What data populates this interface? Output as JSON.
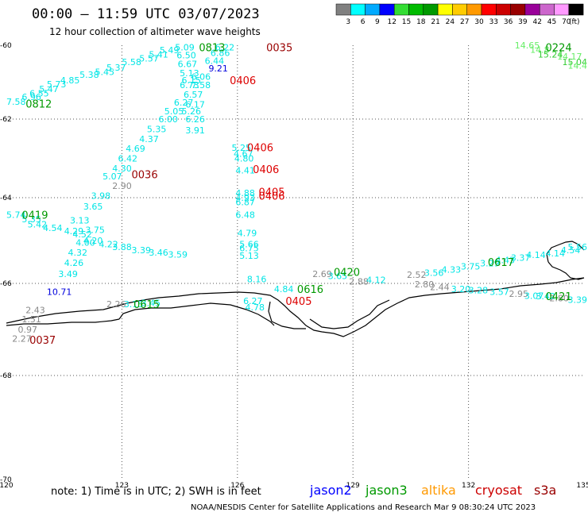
{
  "title": "00:00 – 11:59 UTC 03/07/2023",
  "subtitle": "12 hour collection of altimeter wave heights",
  "note": "note: 1) Time is in UTC; 2) SWH is in feet",
  "credit": "NOAA/NESDIS Center for Satellite Applications and Research    Mar  9 08:30:24 UTC 2023",
  "satellites": [
    {
      "name": "jason2",
      "color": "#0000ff"
    },
    {
      "name": "jason3",
      "color": "#009900"
    },
    {
      "name": "altika",
      "color": "#ff9900"
    },
    {
      "name": "cryosat",
      "color": "#cc0000"
    },
    {
      "name": "s3a",
      "color": "#990000"
    }
  ],
  "colorbar": {
    "unit": "(ft)",
    "labels": [
      "3",
      "6",
      "9",
      "12",
      "15",
      "18",
      "21",
      "24",
      "27",
      "30",
      "33",
      "36",
      "39",
      "42",
      "45",
      "70"
    ],
    "colors": [
      "#808080",
      "#00ffff",
      "#00aaff",
      "#0000ff",
      "#33dd33",
      "#00bb00",
      "#009900",
      "#ffff00",
      "#ffcc00",
      "#ff9900",
      "#ff0000",
      "#cc0000",
      "#990000",
      "#990099",
      "#cc66cc",
      "#ff99ff",
      "#000000"
    ]
  },
  "axes": {
    "lon_ticks": [
      "120",
      "123",
      "126",
      "129",
      "132",
      "135"
    ],
    "lat_ticks": [
      "-60",
      "-62",
      "-64",
      "-66",
      "-68",
      "-70"
    ]
  },
  "wave_labels": [
    {
      "t": "7.58",
      "lon": 120.0,
      "lat": -61.53,
      "c": "#00e5e5"
    },
    {
      "t": "6.96",
      "lon": 120.4,
      "lat": -61.4,
      "c": "#00e5e5"
    },
    {
      "t": "6.55",
      "lon": 120.6,
      "lat": -61.3,
      "c": "#00e5e5"
    },
    {
      "t": "5.47",
      "lon": 120.85,
      "lat": -61.18,
      "c": "#00e5e5"
    },
    {
      "t": "5.73",
      "lon": 121.05,
      "lat": -61.05,
      "c": "#00e5e5"
    },
    {
      "t": "4.85",
      "lon": 121.4,
      "lat": -60.95,
      "c": "#00e5e5"
    },
    {
      "t": "5.38",
      "lon": 121.9,
      "lat": -60.8,
      "c": "#00e5e5"
    },
    {
      "t": "5.45",
      "lon": 122.3,
      "lat": -60.72,
      "c": "#00e5e5"
    },
    {
      "t": "5.37",
      "lon": 122.6,
      "lat": -60.6,
      "c": "#00e5e5"
    },
    {
      "t": "5.58",
      "lon": 123.0,
      "lat": -60.45,
      "c": "#00e5e5"
    },
    {
      "t": "5.57",
      "lon": 123.45,
      "lat": -60.35,
      "c": "#00e5e5"
    },
    {
      "t": "5.41",
      "lon": 123.7,
      "lat": -60.25,
      "c": "#00e5e5"
    },
    {
      "t": "5.49",
      "lon": 123.98,
      "lat": -60.13,
      "c": "#00e5e5"
    },
    {
      "t": "5.09",
      "lon": 124.38,
      "lat": -60.05,
      "c": "#00e5e5"
    },
    {
      "t": "6.50",
      "lon": 124.42,
      "lat": -60.27,
      "c": "#00e5e5"
    },
    {
      "t": "6.22",
      "lon": 125.42,
      "lat": -60.05,
      "c": "#00e5e5"
    },
    {
      "t": "6.86",
      "lon": 125.3,
      "lat": -60.2,
      "c": "#00e5e5"
    },
    {
      "t": "6.44",
      "lon": 125.15,
      "lat": -60.42,
      "c": "#00e5e5"
    },
    {
      "t": "6.67",
      "lon": 124.45,
      "lat": -60.5,
      "c": "#00e5e5"
    },
    {
      "t": "9.21",
      "lon": 125.25,
      "lat": -60.62,
      "c": "#0000dd"
    },
    {
      "t": "5.13",
      "lon": 124.5,
      "lat": -60.75,
      "c": "#00e5e5"
    },
    {
      "t": "6.06",
      "lon": 124.8,
      "lat": -60.85,
      "c": "#00e5e5"
    },
    {
      "t": "6.15",
      "lon": 124.55,
      "lat": -60.95,
      "c": "#00e5e5"
    },
    {
      "t": "6.73",
      "lon": 124.5,
      "lat": -61.08,
      "c": "#00e5e5"
    },
    {
      "t": "7.58",
      "lon": 124.8,
      "lat": -61.08,
      "c": "#00e5e5"
    },
    {
      "t": "6.57",
      "lon": 124.6,
      "lat": -61.33,
      "c": "#00e5e5"
    },
    {
      "t": "6.27",
      "lon": 124.35,
      "lat": -61.55,
      "c": "#00e5e5"
    },
    {
      "t": "6.17",
      "lon": 124.65,
      "lat": -61.6,
      "c": "#00e5e5"
    },
    {
      "t": "5.05",
      "lon": 124.1,
      "lat": -61.78,
      "c": "#00e5e5"
    },
    {
      "t": "5.26",
      "lon": 124.55,
      "lat": -61.78,
      "c": "#00e5e5"
    },
    {
      "t": "6.00",
      "lon": 123.95,
      "lat": -62.0,
      "c": "#00e5e5"
    },
    {
      "t": "6.26",
      "lon": 124.65,
      "lat": -62.0,
      "c": "#00e5e5"
    },
    {
      "t": "5.35",
      "lon": 123.65,
      "lat": -62.25,
      "c": "#00e5e5"
    },
    {
      "t": "3.91",
      "lon": 124.65,
      "lat": -62.28,
      "c": "#00e5e5"
    },
    {
      "t": "4.37",
      "lon": 123.45,
      "lat": -62.5,
      "c": "#00e5e5"
    },
    {
      "t": "4.69",
      "lon": 123.1,
      "lat": -62.75,
      "c": "#00e5e5"
    },
    {
      "t": "5.25",
      "lon": 125.85,
      "lat": -62.73,
      "c": "#00e5e5"
    },
    {
      "t": "4.67",
      "lon": 125.9,
      "lat": -62.88,
      "c": "#00e5e5"
    },
    {
      "t": "4.80",
      "lon": 125.92,
      "lat": -63.0,
      "c": "#00e5e5"
    },
    {
      "t": "6.42",
      "lon": 122.9,
      "lat": -63.0,
      "c": "#00e5e5"
    },
    {
      "t": "4.30",
      "lon": 122.75,
      "lat": -63.25,
      "c": "#00e5e5"
    },
    {
      "t": "4.41",
      "lon": 125.95,
      "lat": -63.3,
      "c": "#00e5e5"
    },
    {
      "t": "5.07",
      "lon": 122.5,
      "lat": -63.45,
      "c": "#00e5e5"
    },
    {
      "t": "2.90",
      "lon": 122.75,
      "lat": -63.7,
      "c": "#888888"
    },
    {
      "t": "3.98",
      "lon": 122.2,
      "lat": -63.95,
      "c": "#00e5e5"
    },
    {
      "t": "4.88",
      "lon": 125.95,
      "lat": -63.88,
      "c": "#00e5e5"
    },
    {
      "t": "4.93",
      "lon": 125.95,
      "lat": -64.0,
      "c": "#00e5e5"
    },
    {
      "t": "6.87",
      "lon": 125.95,
      "lat": -64.1,
      "c": "#00e5e5"
    },
    {
      "t": "3.65",
      "lon": 122.0,
      "lat": -64.2,
      "c": "#00e5e5"
    },
    {
      "t": "6.48",
      "lon": 125.95,
      "lat": -64.4,
      "c": "#00e5e5"
    },
    {
      "t": "5.74",
      "lon": 120.0,
      "lat": -64.4,
      "c": "#00e5e5"
    },
    {
      "t": "5.35",
      "lon": 120.4,
      "lat": -64.5,
      "c": "#00e5e5"
    },
    {
      "t": "5.42",
      "lon": 120.55,
      "lat": -64.62,
      "c": "#00e5e5"
    },
    {
      "t": "4.54",
      "lon": 120.95,
      "lat": -64.7,
      "c": "#00e5e5"
    },
    {
      "t": "3.13",
      "lon": 121.65,
      "lat": -64.53,
      "c": "#00e5e5"
    },
    {
      "t": "4.29",
      "lon": 121.5,
      "lat": -64.78,
      "c": "#00e5e5"
    },
    {
      "t": "3.75",
      "lon": 122.05,
      "lat": -64.75,
      "c": "#00e5e5"
    },
    {
      "t": "4.52",
      "lon": 121.72,
      "lat": -64.85,
      "c": "#00e5e5"
    },
    {
      "t": "4.79",
      "lon": 126.0,
      "lat": -64.82,
      "c": "#00e5e5"
    },
    {
      "t": "4.20",
      "lon": 122.0,
      "lat": -65.0,
      "c": "#00e5e5"
    },
    {
      "t": "4.00",
      "lon": 121.8,
      "lat": -65.05,
      "c": "#00e5e5"
    },
    {
      "t": "4.22",
      "lon": 122.4,
      "lat": -65.08,
      "c": "#00e5e5"
    },
    {
      "t": "5.66",
      "lon": 126.05,
      "lat": -65.08,
      "c": "#00e5e5"
    },
    {
      "t": "3.88",
      "lon": 122.75,
      "lat": -65.15,
      "c": "#00e5e5"
    },
    {
      "t": "6.75",
      "lon": 126.05,
      "lat": -65.18,
      "c": "#00e5e5"
    },
    {
      "t": "3.39",
      "lon": 123.25,
      "lat": -65.22,
      "c": "#00e5e5"
    },
    {
      "t": "4.32",
      "lon": 121.6,
      "lat": -65.28,
      "c": "#00e5e5"
    },
    {
      "t": "3.46",
      "lon": 123.7,
      "lat": -65.28,
      "c": "#00e5e5"
    },
    {
      "t": "3.59",
      "lon": 124.2,
      "lat": -65.32,
      "c": "#00e5e5"
    },
    {
      "t": "5.13",
      "lon": 126.05,
      "lat": -65.35,
      "c": "#00e5e5"
    },
    {
      "t": "4.26",
      "lon": 121.5,
      "lat": -65.52,
      "c": "#00e5e5"
    },
    {
      "t": "3.49",
      "lon": 121.35,
      "lat": -65.78,
      "c": "#00e5e5"
    },
    {
      "t": "8.16",
      "lon": 126.25,
      "lat": -65.9,
      "c": "#00e5e5"
    },
    {
      "t": "4.84",
      "lon": 126.95,
      "lat": -66.12,
      "c": "#00e5e5"
    },
    {
      "t": "10.71",
      "lon": 121.05,
      "lat": -66.18,
      "c": "#0000dd"
    },
    {
      "t": "6.27",
      "lon": 126.15,
      "lat": -66.38,
      "c": "#00e5e5"
    },
    {
      "t": "4.78",
      "lon": 126.2,
      "lat": -66.52,
      "c": "#00e5e5"
    },
    {
      "t": "2.26",
      "lon": 122.6,
      "lat": -66.45,
      "c": "#888888"
    },
    {
      "t": "3.15",
      "lon": 123.05,
      "lat": -66.45,
      "c": "#00e5e5"
    },
    {
      "t": "3.45",
      "lon": 123.5,
      "lat": -66.42,
      "c": "#00e5e5"
    },
    {
      "t": "2.43",
      "lon": 120.5,
      "lat": -66.58,
      "c": "#888888"
    },
    {
      "t": "1.51",
      "lon": 120.4,
      "lat": -66.78,
      "c": "#888888"
    },
    {
      "t": "0.97",
      "lon": 120.3,
      "lat": -67.0,
      "c": "#888888"
    },
    {
      "t": "2.27",
      "lon": 120.15,
      "lat": -67.2,
      "c": "#888888"
    },
    {
      "t": "2.69",
      "lon": 127.95,
      "lat": -65.78,
      "c": "#888888"
    },
    {
      "t": "3.65",
      "lon": 128.35,
      "lat": -65.82,
      "c": "#00e5e5"
    },
    {
      "t": "2.88",
      "lon": 128.9,
      "lat": -65.95,
      "c": "#888888"
    },
    {
      "t": "4.12",
      "lon": 129.35,
      "lat": -65.92,
      "c": "#00e5e5"
    },
    {
      "t": "2.52",
      "lon": 130.4,
      "lat": -65.8,
      "c": "#888888"
    },
    {
      "t": "3.56",
      "lon": 130.85,
      "lat": -65.75,
      "c": "#00e5e5"
    },
    {
      "t": "4.33",
      "lon": 131.3,
      "lat": -65.68,
      "c": "#00e5e5"
    },
    {
      "t": "3.75",
      "lon": 131.8,
      "lat": -65.6,
      "c": "#00e5e5"
    },
    {
      "t": "3.29",
      "lon": 132.3,
      "lat": -65.53,
      "c": "#00e5e5"
    },
    {
      "t": "4.43",
      "lon": 132.7,
      "lat": -65.45,
      "c": "#00e5e5"
    },
    {
      "t": "3.37",
      "lon": 133.1,
      "lat": -65.4,
      "c": "#00e5e5"
    },
    {
      "t": "4.14",
      "lon": 133.5,
      "lat": -65.33,
      "c": "#00e5e5"
    },
    {
      "t": "4.14",
      "lon": 134.0,
      "lat": -65.3,
      "c": "#00e5e5"
    },
    {
      "t": "4.54",
      "lon": 134.4,
      "lat": -65.22,
      "c": "#00e5e5"
    },
    {
      "t": "5.56",
      "lon": 134.75,
      "lat": -65.15,
      "c": "#00e5e5"
    },
    {
      "t": "2.80",
      "lon": 130.6,
      "lat": -66.02,
      "c": "#888888"
    },
    {
      "t": "2.44",
      "lon": 131.0,
      "lat": -66.08,
      "c": "#888888"
    },
    {
      "t": "3.20",
      "lon": 131.55,
      "lat": -66.12,
      "c": "#00e5e5"
    },
    {
      "t": "3.28",
      "lon": 132.0,
      "lat": -66.15,
      "c": "#00e5e5"
    },
    {
      "t": "3.57",
      "lon": 132.55,
      "lat": -66.18,
      "c": "#00e5e5"
    },
    {
      "t": "2.95",
      "lon": 133.05,
      "lat": -66.22,
      "c": "#888888"
    },
    {
      "t": "3.07",
      "lon": 133.45,
      "lat": -66.27,
      "c": "#00e5e5"
    },
    {
      "t": "3.42",
      "lon": 133.75,
      "lat": -66.28,
      "c": "#00e5e5"
    },
    {
      "t": "2.80",
      "lon": 134.1,
      "lat": -66.32,
      "c": "#888888"
    },
    {
      "t": "3.39",
      "lon": 134.75,
      "lat": -66.35,
      "c": "#00e5e5"
    },
    {
      "t": "14.65",
      "lon": 133.2,
      "lat": -60.0,
      "c": "#66ee66"
    },
    {
      "t": "14.8",
      "lon": 133.6,
      "lat": -60.12,
      "c": "#66ee66"
    },
    {
      "t": "15.24",
      "lon": 133.8,
      "lat": -60.25,
      "c": "#33cc33"
    },
    {
      "t": "14.17",
      "lon": 134.3,
      "lat": -60.3,
      "c": "#66ee66"
    },
    {
      "t": "15.04",
      "lon": 134.5,
      "lat": -60.45,
      "c": "#33cc33"
    },
    {
      "t": "14.4",
      "lon": 134.95,
      "lat": -60.55,
      "c": "#66ee66"
    }
  ],
  "pass_labels": [
    {
      "t": "0812",
      "lon": 120.5,
      "lat": -61.58,
      "c": "#009900"
    },
    {
      "t": "0813",
      "lon": 125.0,
      "lat": -60.05,
      "c": "#009900"
    },
    {
      "t": "0035",
      "lon": 126.75,
      "lat": -60.05,
      "c": "#990000"
    },
    {
      "t": "0406",
      "lon": 125.8,
      "lat": -60.95,
      "c": "#dd0000"
    },
    {
      "t": "0406",
      "lon": 126.25,
      "lat": -62.72,
      "c": "#dd0000"
    },
    {
      "t": "0406",
      "lon": 126.4,
      "lat": -63.27,
      "c": "#dd0000"
    },
    {
      "t": "0405",
      "lon": 126.55,
      "lat": -63.85,
      "c": "#dd0000"
    },
    {
      "t": "0406",
      "lon": 126.55,
      "lat": -63.95,
      "c": "#dd0000"
    },
    {
      "t": "0036",
      "lon": 123.25,
      "lat": -63.4,
      "c": "#990000"
    },
    {
      "t": "0419",
      "lon": 120.4,
      "lat": -64.4,
      "c": "#009900"
    },
    {
      "t": "0420",
      "lon": 128.5,
      "lat": -65.73,
      "c": "#009900"
    },
    {
      "t": "0616",
      "lon": 127.55,
      "lat": -66.12,
      "c": "#009900"
    },
    {
      "t": "0617",
      "lon": 132.5,
      "lat": -65.5,
      "c": "#009900"
    },
    {
      "t": "0405",
      "lon": 127.25,
      "lat": -66.38,
      "c": "#dd0000"
    },
    {
      "t": "0615",
      "lon": 123.3,
      "lat": -66.45,
      "c": "#009900"
    },
    {
      "t": "0421",
      "lon": 134.0,
      "lat": -66.28,
      "c": "#009900"
    },
    {
      "t": "0224",
      "lon": 134.0,
      "lat": -60.05,
      "c": "#009900"
    },
    {
      "t": "0037",
      "lon": 120.6,
      "lat": -67.22,
      "c": "#990000"
    }
  ]
}
